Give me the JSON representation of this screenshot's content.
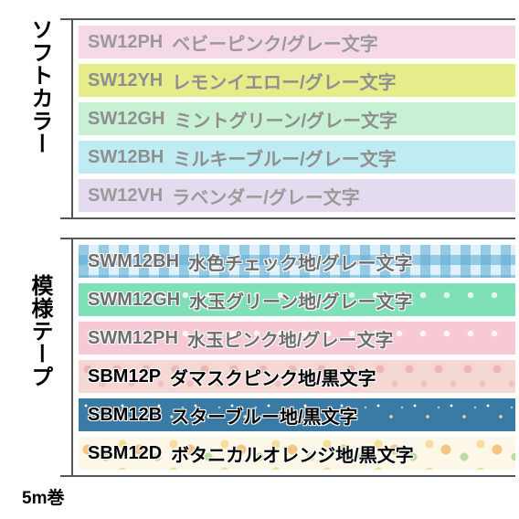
{
  "leftLabels": {
    "soft": "ソフトカラー",
    "moyou": "模様テープ",
    "length": "5m巻"
  },
  "groups": [
    {
      "rows": [
        {
          "code": "SW12PH",
          "desc": "ベビーピンク/グレー文字",
          "bg": "#f6d9e6",
          "color": "#9a9a9a",
          "pattern": ""
        },
        {
          "code": "SW12YH",
          "desc": "レモンイエロー/グレー文字",
          "bg": "#e6ec8a",
          "color": "#8f8f8f",
          "pattern": ""
        },
        {
          "code": "SW12GH",
          "desc": "ミントグリーン/グレー文字",
          "bg": "#c7f0d4",
          "color": "#8f8f8f",
          "pattern": ""
        },
        {
          "code": "SW12BH",
          "desc": "ミルキーブルー/グレー文字",
          "bg": "#bfecf2",
          "color": "#8f8f8f",
          "pattern": ""
        },
        {
          "code": "SW12VH",
          "desc": "ラベンダー/グレー文字",
          "bg": "#e4dbef",
          "color": "#9a9a9a",
          "pattern": ""
        }
      ]
    },
    {
      "rows": [
        {
          "code": "SWM12BH",
          "desc": "水色チェック地/グレー文字",
          "bg": "",
          "color": "#6e6e6e",
          "pattern": "gingham"
        },
        {
          "code": "SWM12GH",
          "desc": "水玉グリーン地/グレー文字",
          "bg": "",
          "color": "#6e6e6e",
          "pattern": "polka-green"
        },
        {
          "code": "SWM12PH",
          "desc": "水玉ピンク地/グレー文字",
          "bg": "",
          "color": "#6e6e6e",
          "pattern": "polka-pink"
        },
        {
          "code": "SBM12P",
          "desc": "ダマスクピンク地/黒文字",
          "bg": "",
          "color": "#000000",
          "pattern": "damask"
        },
        {
          "code": "SBM12B",
          "desc": "スターブルー地/黒文字",
          "bg": "",
          "color": "#000000",
          "pattern": "stars"
        },
        {
          "code": "SBM12D",
          "desc": "ボタニカルオレンジ地/黒文字",
          "bg": "",
          "color": "#000000",
          "pattern": "botanical"
        }
      ]
    }
  ]
}
